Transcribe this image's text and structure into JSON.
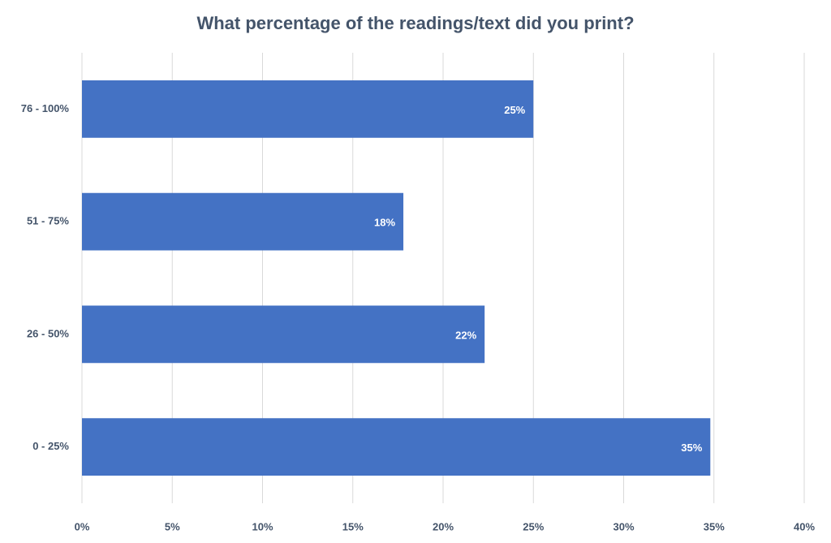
{
  "chart_data": {
    "type": "hbar",
    "title": "What percentage of the readings/text did you print?",
    "categories": [
      "76 - 100%",
      "51 - 75%",
      "26 - 50%",
      "0 - 25%"
    ],
    "values": [
      25,
      17.8,
      22.3,
      34.8
    ],
    "value_labels": [
      "25%",
      "18%",
      "22%",
      "35%"
    ],
    "color": "#4472c4",
    "xlim": [
      0,
      40
    ],
    "xticks": [
      {
        "value": 0,
        "label": "0%"
      },
      {
        "value": 5,
        "label": "5%"
      },
      {
        "value": 10,
        "label": "10%"
      },
      {
        "value": 15,
        "label": "15%"
      },
      {
        "value": 20,
        "label": "20%"
      },
      {
        "value": 25,
        "label": "25%"
      },
      {
        "value": 30,
        "label": "30%"
      },
      {
        "value": 35,
        "label": "35%"
      },
      {
        "value": 40,
        "label": "40%"
      }
    ],
    "grid": true
  }
}
